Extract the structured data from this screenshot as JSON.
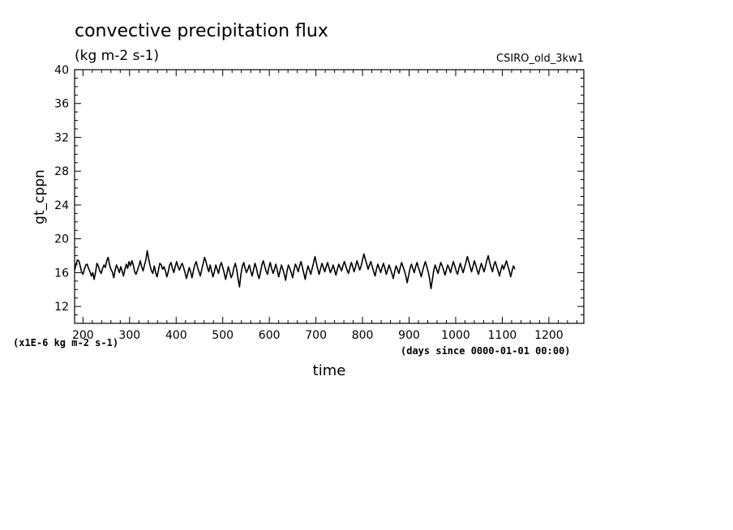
{
  "chart_data": {
    "type": "line",
    "title": "convective precipitation flux",
    "subtitle": "(kg m-2 s-1)",
    "source_label": "CSIRO_old_3kw1",
    "ylabel": "gt_cppn",
    "xlabel": "time",
    "y_units_note": "(x1E-6 kg m-2 s-1)",
    "x_units_note": "(days since 0000-01-01 00:00)",
    "xlim": [
      182,
      1275
    ],
    "ylim": [
      10,
      40
    ],
    "x_ticks": [
      200,
      300,
      400,
      500,
      600,
      700,
      800,
      900,
      1000,
      1100,
      1200
    ],
    "y_ticks": [
      12,
      16,
      20,
      24,
      28,
      32,
      36,
      40
    ],
    "grid": false,
    "series": [
      {
        "color": "#000000",
        "x_start": 182,
        "x_step": 3,
        "values": [
          16.3,
          16.9,
          17.5,
          17.4,
          16.8,
          16.1,
          15.8,
          16.4,
          16.9,
          17.0,
          16.5,
          16.1,
          15.6,
          16.0,
          15.2,
          16.1,
          17.1,
          16.8,
          16.2,
          15.9,
          16.5,
          16.9,
          16.6,
          17.4,
          17.8,
          16.9,
          16.4,
          16.1,
          15.4,
          16.3,
          16.9,
          16.5,
          16.0,
          16.7,
          16.2,
          15.6,
          16.4,
          17.0,
          16.5,
          17.3,
          16.8,
          17.4,
          16.9,
          16.1,
          15.8,
          16.3,
          16.8,
          17.4,
          16.7,
          16.2,
          16.9,
          17.5,
          18.6,
          17.6,
          16.8,
          16.2,
          15.9,
          16.8,
          16.0,
          15.5,
          16.3,
          17.1,
          16.9,
          16.4,
          16.7,
          16.2,
          15.5,
          16.1,
          16.9,
          17.2,
          16.5,
          16.0,
          16.7,
          17.3,
          16.7,
          16.3,
          16.8,
          17.1,
          16.6,
          16.0,
          15.3,
          15.9,
          16.6,
          16.1,
          15.4,
          16.2,
          16.9,
          17.3,
          16.6,
          16.1,
          15.6,
          16.4,
          17.1,
          17.8,
          17.3,
          16.6,
          16.1,
          16.9,
          16.2,
          15.5,
          16.1,
          16.9,
          16.4,
          15.9,
          16.8,
          17.2,
          16.6,
          16.0,
          15.2,
          15.9,
          16.7,
          16.1,
          15.4,
          15.8,
          16.6,
          17.1,
          16.4,
          15.2,
          14.3,
          15.8,
          16.7,
          17.2,
          16.5,
          16.0,
          16.4,
          16.9,
          16.2,
          15.6,
          16.3,
          17.1,
          16.6,
          15.8,
          15.3,
          16.1,
          16.9,
          17.4,
          16.8,
          16.2,
          15.8,
          16.6,
          17.2,
          16.5,
          15.9,
          16.4,
          17.0,
          16.3,
          15.5,
          16.2,
          16.9,
          16.4,
          15.8,
          15.1,
          16.2,
          16.9,
          16.5,
          16.0,
          15.4,
          16.3,
          17.0,
          16.6,
          16.1,
          16.8,
          17.3,
          16.6,
          15.9,
          15.2,
          16.1,
          16.8,
          16.3,
          15.8,
          16.5,
          17.2,
          17.9,
          17.1,
          16.4,
          15.8,
          16.5,
          17.1,
          16.6,
          16.1,
          16.7,
          17.2,
          16.6,
          16.0,
          16.4,
          16.9,
          16.3,
          15.7,
          16.4,
          17.0,
          16.6,
          16.2,
          16.8,
          17.3,
          16.8,
          16.3,
          15.9,
          16.6,
          17.2,
          16.7,
          16.1,
          16.7,
          17.4,
          16.9,
          16.3,
          16.8,
          17.5,
          18.2,
          17.6,
          17.0,
          16.4,
          16.9,
          17.3,
          16.7,
          16.1,
          15.6,
          16.4,
          17.0,
          16.5,
          16.0,
          16.6,
          17.1,
          16.5,
          15.8,
          16.3,
          16.9,
          16.4,
          15.9,
          15.3,
          16.1,
          16.8,
          16.4,
          15.9,
          16.6,
          17.2,
          16.7,
          16.2,
          15.6,
          14.8,
          15.7,
          16.5,
          17.0,
          16.5,
          16.0,
          16.7,
          17.2,
          16.6,
          16.1,
          15.5,
          16.2,
          16.8,
          17.3,
          16.7,
          16.1,
          15.3,
          14.1,
          15.2,
          16.3,
          16.9,
          16.4,
          15.9,
          16.6,
          17.2,
          16.8,
          16.3,
          15.7,
          16.3,
          16.9,
          16.5,
          16.0,
          16.7,
          17.3,
          16.8,
          16.2,
          15.8,
          16.5,
          17.1,
          16.5,
          16.0,
          16.6,
          17.2,
          17.9,
          17.3,
          16.7,
          16.1,
          16.7,
          17.4,
          16.9,
          16.3,
          15.8,
          16.5,
          17.1,
          16.6,
          16.1,
          16.8,
          17.5,
          18.0,
          17.2,
          16.6,
          16.1,
          16.9,
          17.3,
          16.7,
          16.2,
          15.6,
          16.3,
          16.9,
          16.4,
          16.9,
          17.4,
          16.8,
          16.2,
          15.5,
          16.2,
          16.8,
          16.4
        ]
      }
    ]
  }
}
